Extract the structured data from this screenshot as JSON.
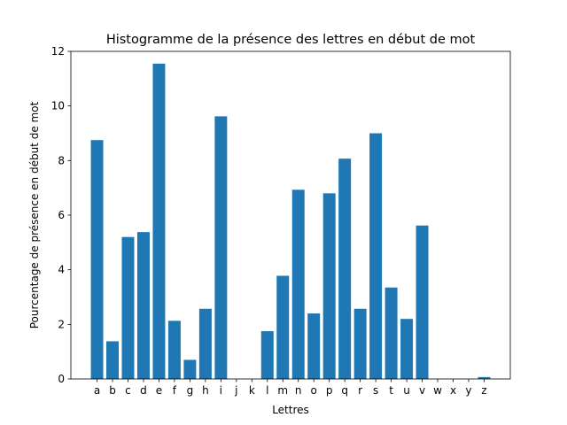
{
  "chart_data": {
    "type": "bar",
    "title": "Histogramme de la présence des lettres en début de mot",
    "xlabel": "Lettres",
    "ylabel": "Pourcentage de présence en début de mot",
    "ylim": [
      0,
      12
    ],
    "yticks": [
      "0",
      "2",
      "4",
      "6",
      "8",
      "10",
      "12"
    ],
    "categories": [
      "a",
      "b",
      "c",
      "d",
      "e",
      "f",
      "g",
      "h",
      "i",
      "j",
      "k",
      "l",
      "m",
      "n",
      "o",
      "p",
      "q",
      "r",
      "s",
      "t",
      "u",
      "v",
      "w",
      "x",
      "y",
      "z"
    ],
    "values": [
      8.75,
      1.38,
      5.2,
      5.38,
      11.55,
      2.13,
      0.7,
      2.57,
      9.62,
      0,
      0,
      1.75,
      3.78,
      6.93,
      2.4,
      6.8,
      8.07,
      2.57,
      9.0,
      3.35,
      2.2,
      5.62,
      0,
      0,
      0,
      0.07
    ],
    "bar_color": "#1f77b4",
    "grid": false,
    "legend": "none"
  }
}
